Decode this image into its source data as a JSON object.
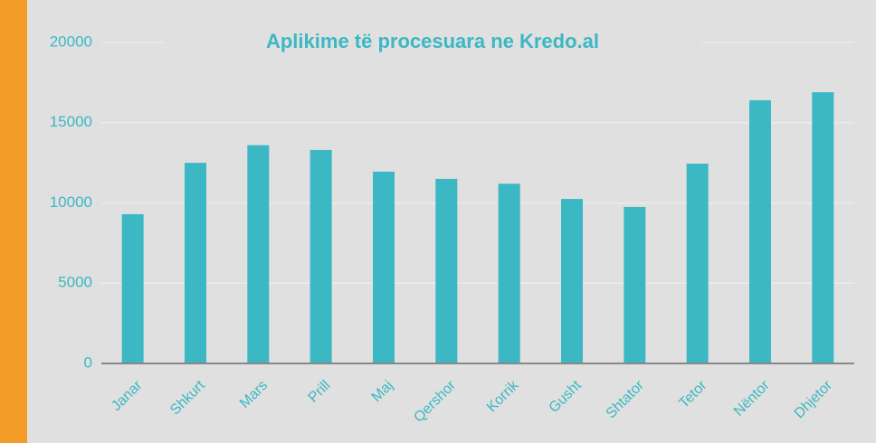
{
  "chart_data": {
    "type": "bar",
    "title": "Aplikime të procesuara ne Kredo.al",
    "categories": [
      "Janar",
      "Shkurt",
      "Mars",
      "Prill",
      "Maj",
      "Qershor",
      "Korrik",
      "Gusht",
      "Shtator",
      "Tetor",
      "Nëntor",
      "Dhjetor"
    ],
    "values": [
      9300,
      12500,
      13600,
      13300,
      11950,
      11500,
      11200,
      10250,
      9750,
      12450,
      16400,
      16900
    ],
    "color": "#3bb8c3",
    "ylim": [
      0,
      20000
    ],
    "yticks": [
      0,
      5000,
      10000,
      15000,
      20000
    ],
    "grid": true
  }
}
